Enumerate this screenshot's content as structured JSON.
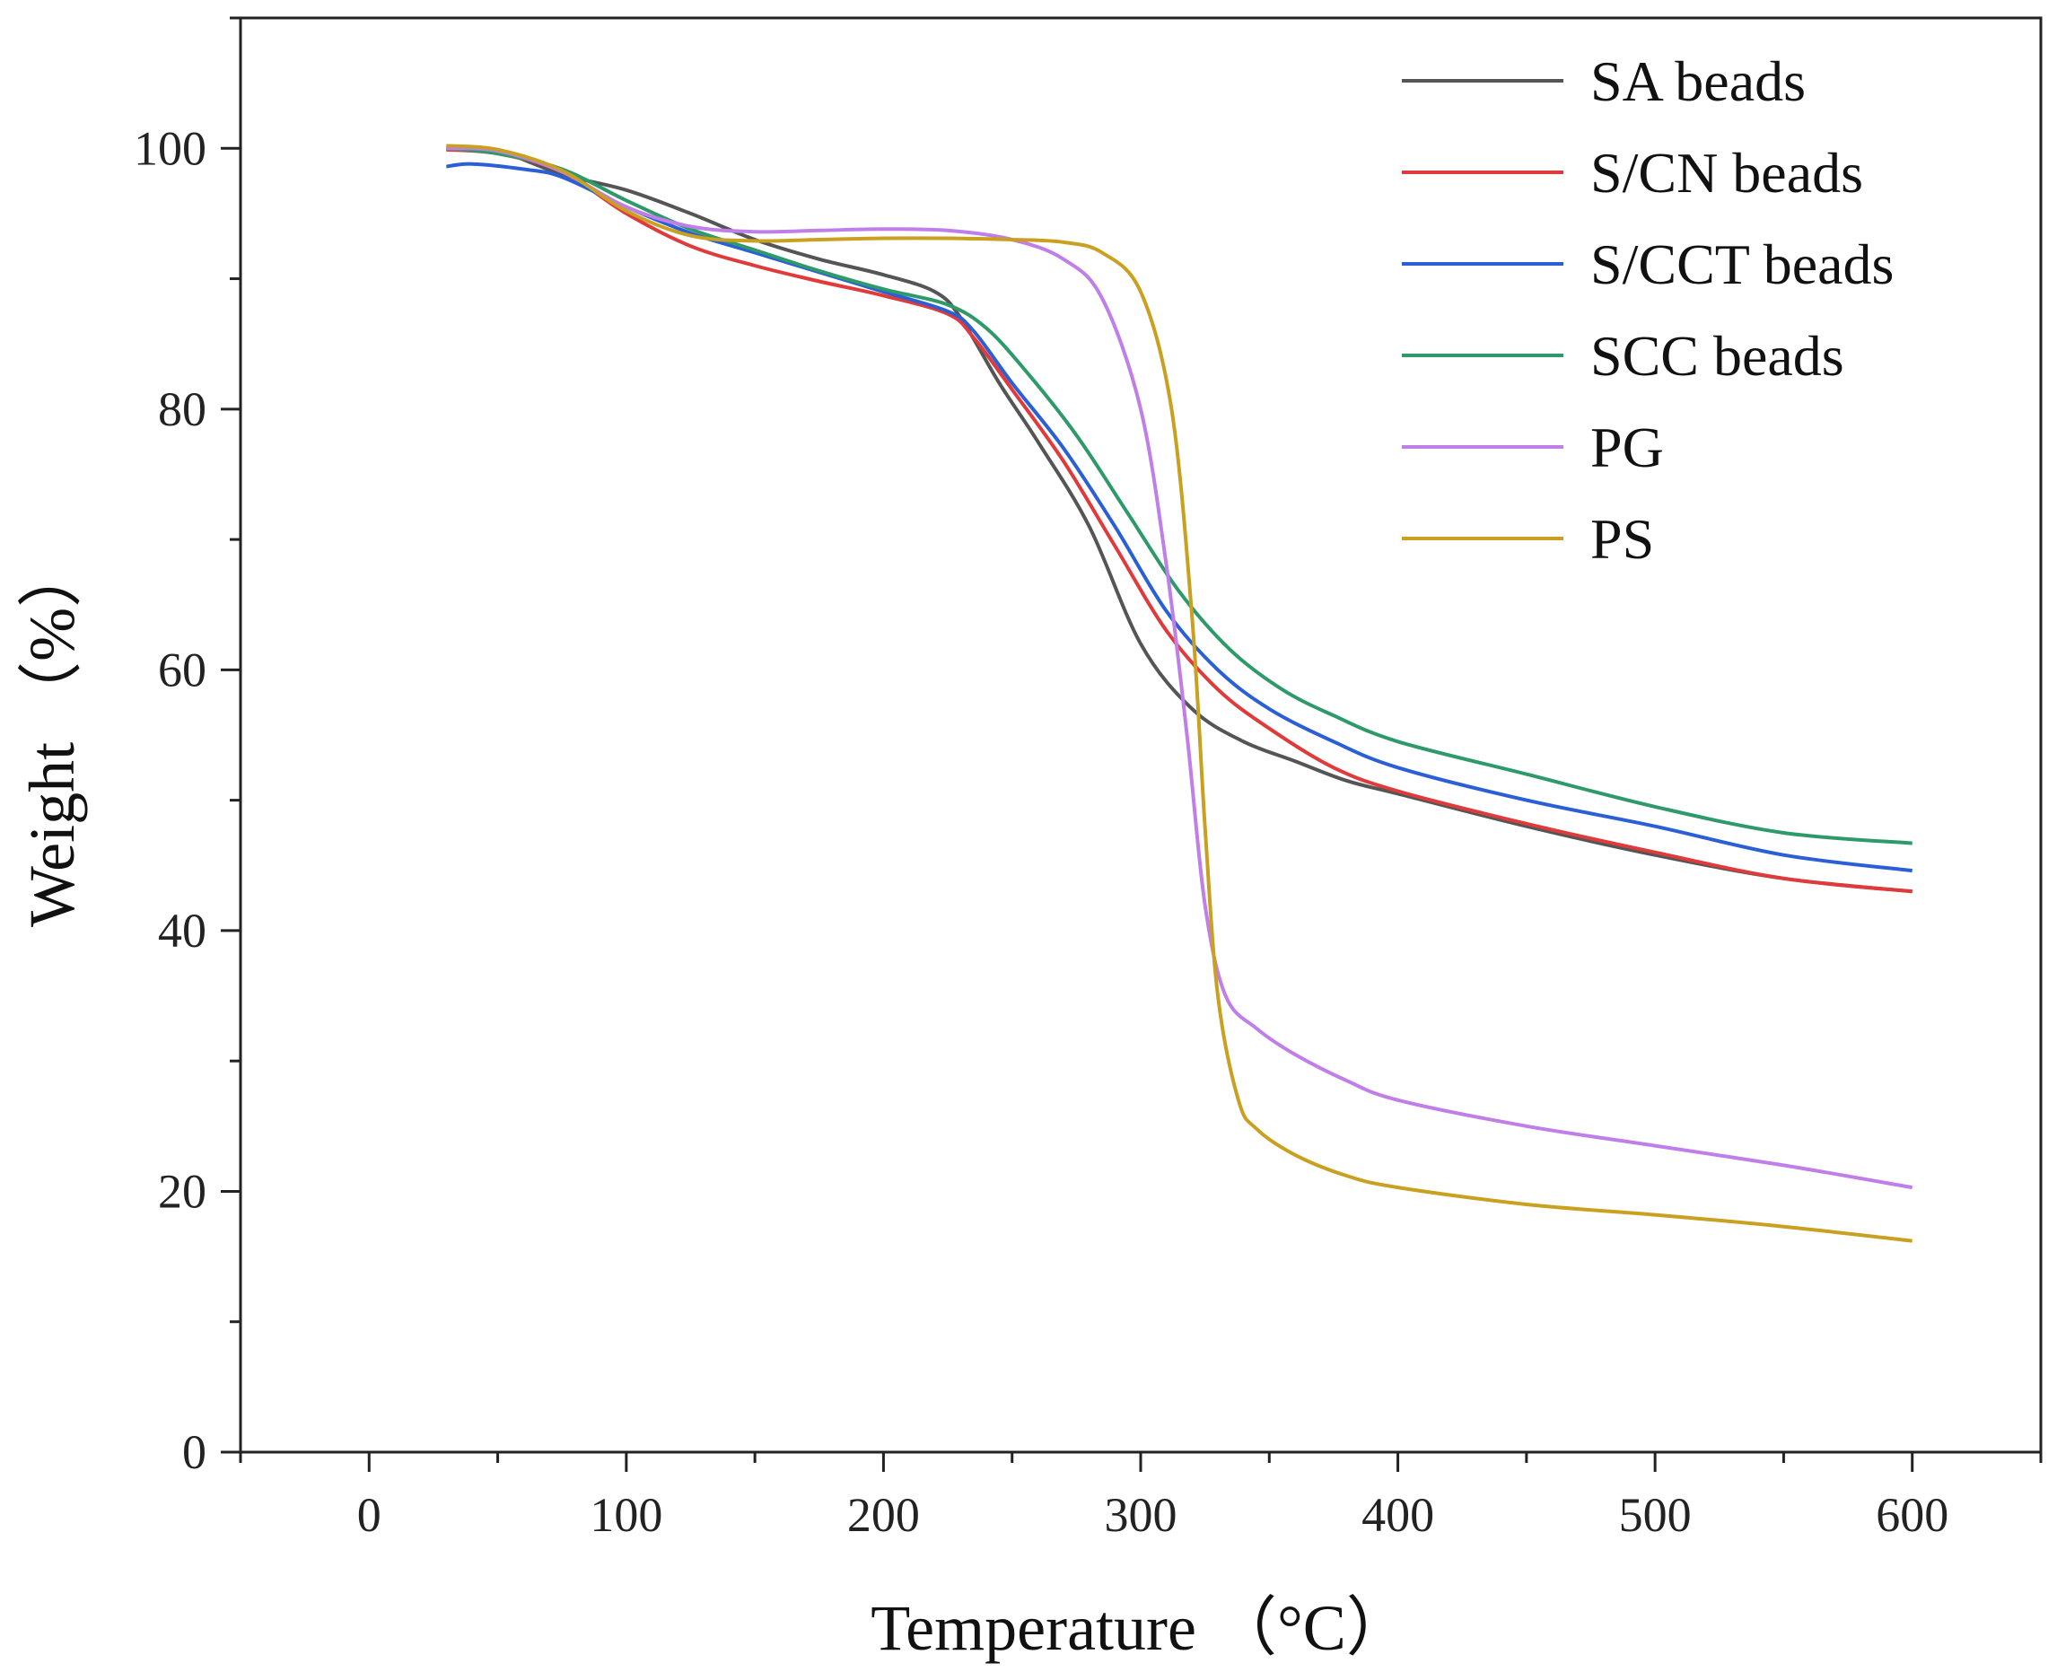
{
  "chart_data": {
    "type": "line",
    "title": "",
    "xlabel": "Temperature （°C）",
    "ylabel": "Weight （%）",
    "xlim": [
      -50,
      650
    ],
    "ylim": [
      0,
      110
    ],
    "xticks": [
      0,
      100,
      200,
      300,
      400,
      500,
      600
    ],
    "yticks": [
      0,
      20,
      40,
      60,
      80,
      100
    ],
    "grid": false,
    "legend_position": "top-right",
    "series": [
      {
        "name": "SA beads",
        "color": "#555555",
        "points": [
          [
            30,
            100
          ],
          [
            50,
            99.8
          ],
          [
            75,
            98
          ],
          [
            100,
            96.8
          ],
          [
            125,
            95
          ],
          [
            150,
            93
          ],
          [
            175,
            91.5
          ],
          [
            200,
            90.3
          ],
          [
            220,
            89
          ],
          [
            230,
            87
          ],
          [
            245,
            82
          ],
          [
            260,
            77.5
          ],
          [
            280,
            71
          ],
          [
            300,
            62
          ],
          [
            320,
            57
          ],
          [
            340,
            54.5
          ],
          [
            360,
            53
          ],
          [
            380,
            51.5
          ],
          [
            400,
            50.5
          ],
          [
            450,
            48
          ],
          [
            500,
            45.8
          ],
          [
            550,
            44
          ],
          [
            600,
            43
          ]
        ]
      },
      {
        "name": "S/CN beads",
        "color": "#e03a3a",
        "points": [
          [
            30,
            99.9
          ],
          [
            50,
            99.6
          ],
          [
            75,
            98.2
          ],
          [
            100,
            95
          ],
          [
            125,
            92.5
          ],
          [
            150,
            91
          ],
          [
            175,
            89.8
          ],
          [
            200,
            88.7
          ],
          [
            225,
            87.3
          ],
          [
            235,
            85.5
          ],
          [
            250,
            81.5
          ],
          [
            270,
            76
          ],
          [
            290,
            69.5
          ],
          [
            310,
            63
          ],
          [
            330,
            58.5
          ],
          [
            350,
            55.5
          ],
          [
            375,
            52.5
          ],
          [
            400,
            50.7
          ],
          [
            450,
            48.2
          ],
          [
            500,
            46
          ],
          [
            550,
            44
          ],
          [
            600,
            43
          ]
        ]
      },
      {
        "name": "S/CCT beads",
        "color": "#2a5fd6",
        "points": [
          [
            30,
            98.6
          ],
          [
            40,
            98.8
          ],
          [
            60,
            98.4
          ],
          [
            75,
            97.8
          ],
          [
            100,
            95.5
          ],
          [
            125,
            93.5
          ],
          [
            150,
            92
          ],
          [
            175,
            90.5
          ],
          [
            200,
            89
          ],
          [
            225,
            87.5
          ],
          [
            235,
            86
          ],
          [
            250,
            82
          ],
          [
            270,
            77
          ],
          [
            290,
            71
          ],
          [
            310,
            64.5
          ],
          [
            330,
            60
          ],
          [
            350,
            57
          ],
          [
            375,
            54.5
          ],
          [
            400,
            52.5
          ],
          [
            450,
            50
          ],
          [
            500,
            48
          ],
          [
            550,
            45.8
          ],
          [
            600,
            44.6
          ]
        ]
      },
      {
        "name": "SCC beads",
        "color": "#2e9a6a",
        "points": [
          [
            30,
            100
          ],
          [
            50,
            99.6
          ],
          [
            75,
            98.4
          ],
          [
            100,
            96
          ],
          [
            125,
            93.8
          ],
          [
            150,
            92.2
          ],
          [
            175,
            90.6
          ],
          [
            200,
            89.2
          ],
          [
            225,
            88
          ],
          [
            240,
            86.2
          ],
          [
            255,
            83
          ],
          [
            275,
            78
          ],
          [
            295,
            72
          ],
          [
            315,
            66
          ],
          [
            335,
            61.5
          ],
          [
            355,
            58.5
          ],
          [
            375,
            56.5
          ],
          [
            400,
            54.5
          ],
          [
            450,
            52
          ],
          [
            500,
            49.5
          ],
          [
            550,
            47.5
          ],
          [
            600,
            46.7
          ]
        ]
      },
      {
        "name": "PG",
        "color": "#c07ee8",
        "points": [
          [
            30,
            100
          ],
          [
            50,
            99.8
          ],
          [
            75,
            98.2
          ],
          [
            100,
            95.5
          ],
          [
            125,
            94
          ],
          [
            150,
            93.6
          ],
          [
            175,
            93.7
          ],
          [
            200,
            93.8
          ],
          [
            225,
            93.7
          ],
          [
            250,
            93
          ],
          [
            270,
            91.5
          ],
          [
            285,
            88.5
          ],
          [
            300,
            80
          ],
          [
            310,
            68
          ],
          [
            318,
            55
          ],
          [
            325,
            42
          ],
          [
            333,
            35
          ],
          [
            345,
            32.5
          ],
          [
            360,
            30.5
          ],
          [
            380,
            28.5
          ],
          [
            400,
            27
          ],
          [
            450,
            25
          ],
          [
            500,
            23.5
          ],
          [
            550,
            22
          ],
          [
            600,
            20.3
          ]
        ]
      },
      {
        "name": "PS",
        "color": "#c9a020",
        "points": [
          [
            30,
            100.2
          ],
          [
            50,
            99.9
          ],
          [
            75,
            98.3
          ],
          [
            100,
            95.2
          ],
          [
            125,
            93.3
          ],
          [
            150,
            92.9
          ],
          [
            175,
            93
          ],
          [
            200,
            93.1
          ],
          [
            225,
            93.1
          ],
          [
            250,
            93
          ],
          [
            270,
            92.8
          ],
          [
            285,
            92
          ],
          [
            300,
            89
          ],
          [
            312,
            80
          ],
          [
            320,
            64
          ],
          [
            325,
            48
          ],
          [
            330,
            35
          ],
          [
            338,
            27
          ],
          [
            345,
            24.8
          ],
          [
            360,
            22.8
          ],
          [
            380,
            21.2
          ],
          [
            400,
            20.3
          ],
          [
            450,
            19
          ],
          [
            500,
            18.2
          ],
          [
            550,
            17.3
          ],
          [
            600,
            16.2
          ]
        ]
      }
    ]
  }
}
